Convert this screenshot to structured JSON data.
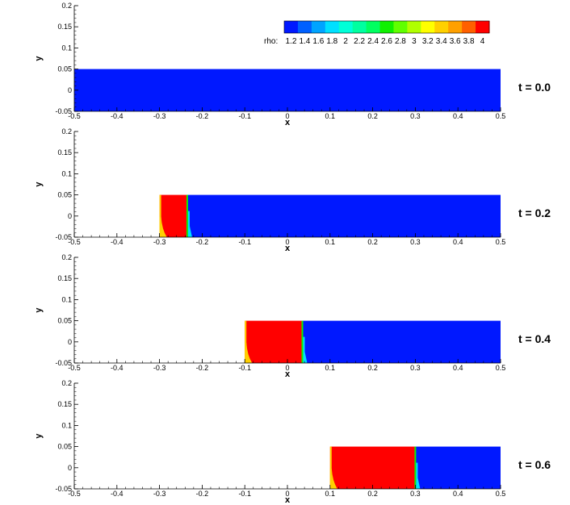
{
  "chart_data": {
    "type": "heatmap",
    "variable": "rho",
    "legend": {
      "label": "rho:",
      "levels": [
        "1.2",
        "1.4",
        "1.6",
        "1.8",
        "2",
        "2.2",
        "2.4",
        "2.6",
        "2.8",
        "3",
        "3.2",
        "3.4",
        "3.6",
        "3.8",
        "4"
      ],
      "colors": [
        "#0018ff",
        "#0060ff",
        "#00a4ff",
        "#00e0ff",
        "#00ffd8",
        "#00ffa0",
        "#00ff60",
        "#10f000",
        "#60ff00",
        "#b0ff00",
        "#ffff00",
        "#ffd000",
        "#ffa000",
        "#ff6000",
        "#ff0000"
      ]
    },
    "xlabel": "x",
    "ylabel": "y",
    "xlim": [
      -0.5,
      0.5
    ],
    "ylim": [
      -0.05,
      0.2
    ],
    "domain_y": [
      -0.05,
      0.05
    ],
    "x_ticks": [
      "-0.5",
      "-0.4",
      "-0.3",
      "-0.2",
      "-0.1",
      "0",
      "0.1",
      "0.2",
      "0.3",
      "0.4",
      "0.5"
    ],
    "y_ticks": [
      "-0.05",
      "0",
      "0.05",
      "0.1",
      "0.15",
      "0.2"
    ],
    "low_density_color": "#0018ff",
    "high_density_color": "#ff0000",
    "transition_colors": [
      "#ffd000",
      "#10f000",
      "#00e0ff"
    ],
    "panels": [
      {
        "time_label": "t = 0.0",
        "rho_low": 1.2,
        "rho_high": 4,
        "high_region": null,
        "front": null
      },
      {
        "time_label": "t = 0.2",
        "rho_low": 1.2,
        "rho_high": 4,
        "high_region": [
          -0.3,
          -0.235
        ],
        "front": -0.235
      },
      {
        "time_label": "t = 0.4",
        "rho_low": 1.2,
        "rho_high": 4,
        "high_region": [
          -0.1,
          0.035
        ],
        "front": 0.035
      },
      {
        "time_label": "t = 0.6",
        "rho_low": 1.2,
        "rho_high": 4,
        "high_region": [
          0.1,
          0.3
        ],
        "front": 0.3
      }
    ]
  }
}
